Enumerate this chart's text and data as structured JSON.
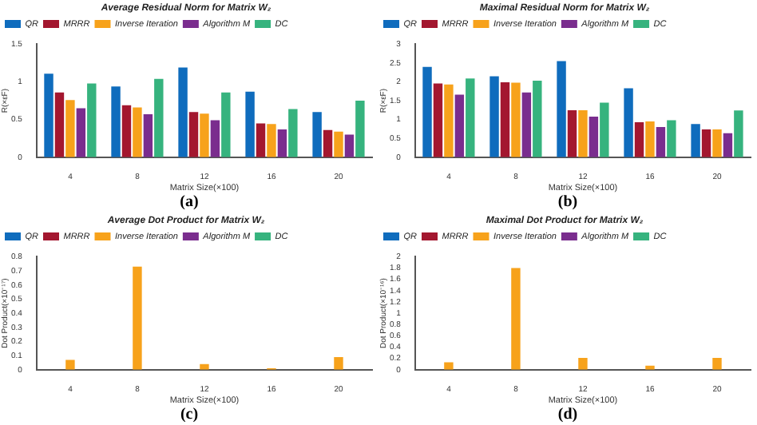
{
  "chart_data": [
    {
      "type": "bar",
      "title": "Average Residual Norm for Matrix W₂",
      "xlabel": "Matrix Size(×100)",
      "ylabel": "R(×εF)",
      "categories": [
        "4",
        "8",
        "12",
        "16",
        "20"
      ],
      "ylim": [
        0,
        1.5
      ],
      "yticks": [
        0,
        0.5,
        1,
        1.5
      ],
      "grid": false,
      "legend": "top left",
      "annotations": [
        "(a)"
      ],
      "series": [
        {
          "name": "QR",
          "color": "#0f6cbd",
          "values": [
            1.11,
            0.94,
            1.19,
            0.87,
            0.6
          ]
        },
        {
          "name": "MRRR",
          "color": "#a3172f",
          "values": [
            0.86,
            0.69,
            0.6,
            0.45,
            0.36
          ]
        },
        {
          "name": "Inverse Iteration",
          "color": "#f7a21b",
          "values": [
            0.76,
            0.66,
            0.58,
            0.44,
            0.34
          ]
        },
        {
          "name": "Algorithm M",
          "color": "#7a2d8e",
          "values": [
            0.65,
            0.57,
            0.49,
            0.37,
            0.3
          ]
        },
        {
          "name": "DC",
          "color": "#36b37e",
          "values": [
            0.98,
            1.04,
            0.86,
            0.64,
            0.75
          ]
        }
      ]
    },
    {
      "type": "bar",
      "title": "Maximal Residual Norm for Matrix W₂",
      "xlabel": "Matrix Size(×100)",
      "ylabel": "R(×εF)",
      "categories": [
        "4",
        "8",
        "12",
        "16",
        "20"
      ],
      "ylim": [
        0,
        3
      ],
      "yticks": [
        0,
        0.5,
        1,
        1.5,
        2,
        2.5,
        3
      ],
      "grid": false,
      "legend": "top left",
      "annotations": [
        "(b)"
      ],
      "series": [
        {
          "name": "QR",
          "color": "#0f6cbd",
          "values": [
            2.4,
            2.15,
            2.55,
            1.83,
            0.88
          ]
        },
        {
          "name": "MRRR",
          "color": "#a3172f",
          "values": [
            1.96,
            1.99,
            1.25,
            0.93,
            0.74
          ]
        },
        {
          "name": "Inverse Iteration",
          "color": "#f7a21b",
          "values": [
            1.93,
            1.98,
            1.25,
            0.95,
            0.74
          ]
        },
        {
          "name": "Algorithm M",
          "color": "#7a2d8e",
          "values": [
            1.66,
            1.72,
            1.08,
            0.8,
            0.64
          ]
        },
        {
          "name": "DC",
          "color": "#36b37e",
          "values": [
            2.09,
            2.03,
            1.45,
            0.98,
            1.24
          ]
        }
      ]
    },
    {
      "type": "bar",
      "title": "Average Dot Product for Matrix W₂",
      "xlabel": "Matrix Size(×100)",
      "ylabel": "Dot Product(×10⁻¹⁷)",
      "categories": [
        "4",
        "8",
        "12",
        "16",
        "20"
      ],
      "ylim": [
        0,
        0.8
      ],
      "yticks": [
        0,
        0.1,
        0.2,
        0.3,
        0.4,
        0.5,
        0.6,
        0.7,
        0.8
      ],
      "grid": false,
      "legend": "top left",
      "annotations": [
        "(c)"
      ],
      "series": [
        {
          "name": "QR",
          "color": "#0f6cbd",
          "values": [
            0,
            0,
            0,
            0,
            0
          ]
        },
        {
          "name": "MRRR",
          "color": "#a3172f",
          "values": [
            0,
            0,
            0,
            0,
            0
          ]
        },
        {
          "name": "Inverse Iteration",
          "color": "#f7a21b",
          "values": [
            0.07,
            0.73,
            0.04,
            0.01,
            0.09
          ]
        },
        {
          "name": "Algorithm M",
          "color": "#7a2d8e",
          "values": [
            0,
            0,
            0,
            0,
            0
          ]
        },
        {
          "name": "DC",
          "color": "#36b37e",
          "values": [
            0,
            0,
            0,
            0,
            0
          ]
        }
      ]
    },
    {
      "type": "bar",
      "title": "Maximal Dot Product for Matrix W₂",
      "xlabel": "Matrix Size(×100)",
      "ylabel": "Dot Product(×10⁻¹⁶)",
      "categories": [
        "4",
        "8",
        "12",
        "16",
        "20"
      ],
      "ylim": [
        0,
        2
      ],
      "yticks": [
        0,
        0.2,
        0.4,
        0.6,
        0.8,
        1,
        1.2,
        1.4,
        1.6,
        1.8,
        2
      ],
      "grid": false,
      "legend": "top left",
      "annotations": [
        "(d)"
      ],
      "series": [
        {
          "name": "QR",
          "color": "#0f6cbd",
          "values": [
            0,
            0,
            0,
            0,
            0
          ]
        },
        {
          "name": "MRRR",
          "color": "#a3172f",
          "values": [
            0,
            0,
            0,
            0,
            0
          ]
        },
        {
          "name": "Inverse Iteration",
          "color": "#f7a21b",
          "values": [
            0.13,
            1.8,
            0.21,
            0.07,
            0.21
          ]
        },
        {
          "name": "Algorithm M",
          "color": "#7a2d8e",
          "values": [
            0,
            0,
            0,
            0,
            0
          ]
        },
        {
          "name": "DC",
          "color": "#36b37e",
          "values": [
            0,
            0,
            0,
            0,
            0
          ]
        }
      ]
    }
  ]
}
